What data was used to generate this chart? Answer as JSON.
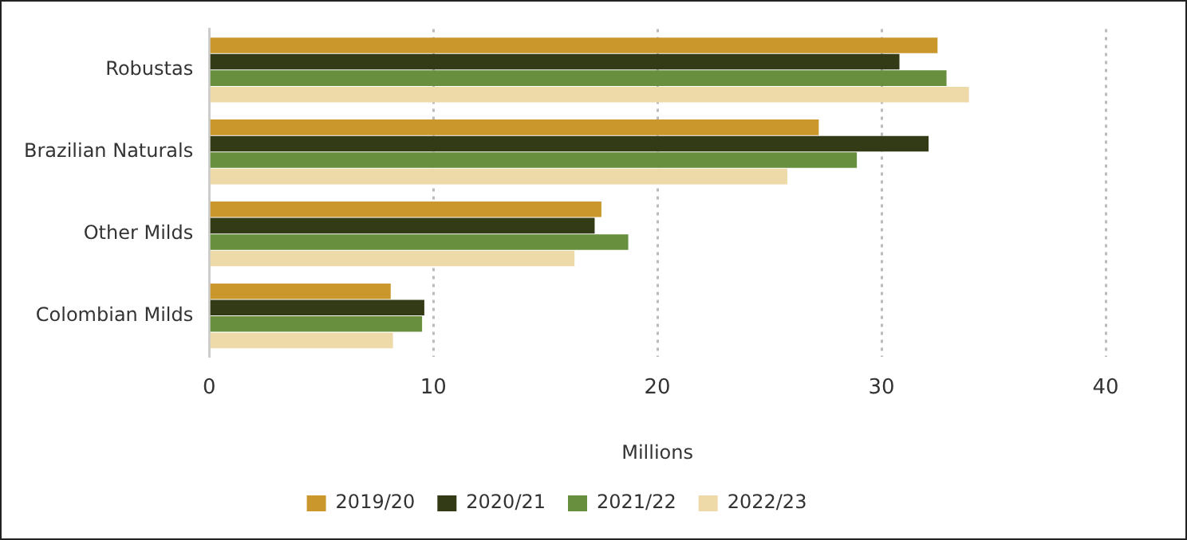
{
  "chart_data": {
    "type": "bar",
    "orientation": "horizontal",
    "xlabel": "Millions",
    "categories": [
      "Robustas",
      "Brazilian Naturals",
      "Other Milds",
      "Colombian Milds"
    ],
    "series": [
      {
        "name": "2019/20",
        "color": "#c9972b",
        "values": [
          32.5,
          27.2,
          17.5,
          8.1
        ]
      },
      {
        "name": "2020/21",
        "color": "#333a16",
        "values": [
          30.8,
          32.1,
          17.2,
          9.6
        ]
      },
      {
        "name": "2021/22",
        "color": "#688f3e",
        "values": [
          32.9,
          28.9,
          18.7,
          9.5
        ]
      },
      {
        "name": "2022/23",
        "color": "#eed9a8",
        "values": [
          33.9,
          25.8,
          16.3,
          8.2
        ]
      }
    ],
    "xlim": [
      0,
      40
    ],
    "xticks": [
      0,
      10,
      20,
      30,
      40
    ],
    "grid": "x",
    "legend": "bottom"
  }
}
